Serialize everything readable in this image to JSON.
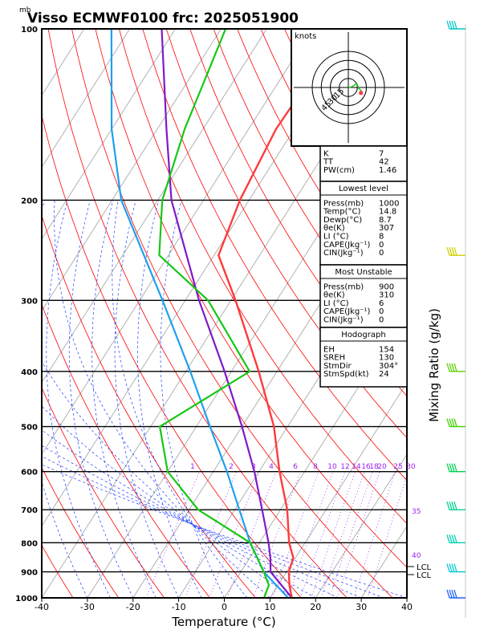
{
  "header": {
    "unit_mb": "mb",
    "title": "Visso ECMWF0100  frc: 2025051900"
  },
  "chart_data": {
    "type": "skew-t",
    "xlabel": "Temperature (°C)",
    "ylabel_right": "Mixing Ratio (g/kg)",
    "x_ticks": [
      -40,
      -30,
      -20,
      -10,
      0,
      10,
      20,
      30,
      40
    ],
    "pressure_ticks": [
      100,
      200,
      300,
      400,
      500,
      600,
      700,
      800,
      900,
      1000
    ],
    "xlim": [
      -40,
      40
    ],
    "plim": [
      1000,
      100
    ],
    "mixing_ratio_labels": [
      "1",
      "2",
      "3",
      "4",
      "6",
      "8",
      "10",
      "12",
      "14",
      "16",
      "18",
      "20",
      "25",
      "30"
    ],
    "theta_e_labels": [
      "35",
      "40"
    ],
    "lcl_labels": [
      "LCL",
      "LCL"
    ],
    "temperature_profile": [
      {
        "p": 1000,
        "t": 14.8
      },
      {
        "p": 950,
        "t": 12.5
      },
      {
        "p": 900,
        "t": 10.5
      },
      {
        "p": 850,
        "t": 9.5
      },
      {
        "p": 800,
        "t": 6.5
      },
      {
        "p": 700,
        "t": 1.5
      },
      {
        "p": 600,
        "t": -5.5
      },
      {
        "p": 500,
        "t": -13
      },
      {
        "p": 400,
        "t": -24
      },
      {
        "p": 300,
        "t": -39
      },
      {
        "p": 250,
        "t": -49
      },
      {
        "p": 200,
        "t": -52
      },
      {
        "p": 150,
        "t": -54
      },
      {
        "p": 100,
        "t": -53
      }
    ],
    "dewpoint_profile": [
      {
        "p": 1000,
        "t": 8.7
      },
      {
        "p": 950,
        "t": 8
      },
      {
        "p": 900,
        "t": 5
      },
      {
        "p": 800,
        "t": -2
      },
      {
        "p": 700,
        "t": -18
      },
      {
        "p": 600,
        "t": -30
      },
      {
        "p": 500,
        "t": -38
      },
      {
        "p": 400,
        "t": -26
      },
      {
        "p": 300,
        "t": -45
      },
      {
        "p": 250,
        "t": -62
      },
      {
        "p": 200,
        "t": -69
      },
      {
        "p": 150,
        "t": -74
      },
      {
        "p": 100,
        "t": -79
      }
    ],
    "parcel_profile": [
      {
        "p": 1000,
        "t": 14.8
      },
      {
        "p": 900,
        "t": 6.5
      },
      {
        "p": 850,
        "t": 4.5
      },
      {
        "p": 800,
        "t": 2
      },
      {
        "p": 700,
        "t": -4
      },
      {
        "p": 600,
        "t": -11
      },
      {
        "p": 500,
        "t": -20
      },
      {
        "p": 400,
        "t": -31.5
      },
      {
        "p": 300,
        "t": -47
      },
      {
        "p": 200,
        "t": -67
      },
      {
        "p": 150,
        "t": -78
      },
      {
        "p": 100,
        "t": -93
      }
    ],
    "moist_adiabat_profile": [
      {
        "p": 1000,
        "t": 14
      },
      {
        "p": 900,
        "t": 5
      },
      {
        "p": 800,
        "t": -2
      },
      {
        "p": 700,
        "t": -9
      },
      {
        "p": 600,
        "t": -17
      },
      {
        "p": 500,
        "t": -27
      },
      {
        "p": 400,
        "t": -39
      },
      {
        "p": 300,
        "t": -55
      },
      {
        "p": 200,
        "t": -78
      },
      {
        "p": 150,
        "t": -90
      },
      {
        "p": 100,
        "t": -104
      }
    ],
    "hodograph": {
      "unit": "knots",
      "ring_labels": [
        "15",
        "30",
        "45"
      ],
      "ring_kt": [
        15,
        30,
        45,
        60
      ],
      "trace": [
        [
          0,
          0
        ],
        [
          5,
          1
        ],
        [
          12,
          5
        ],
        [
          14,
          7
        ],
        [
          17,
          -1
        ],
        [
          22,
          -6
        ]
      ],
      "storm_motion": [
        21,
        -9
      ]
    },
    "indices": [
      {
        "label": "K",
        "value": "7"
      },
      {
        "label": "TT",
        "value": "42"
      },
      {
        "label": "PW(cm)",
        "value": "1.46"
      }
    ],
    "lowest_level": {
      "title": "Lowest level",
      "rows": [
        {
          "label": "Press(mb)",
          "value": "1000"
        },
        {
          "label": "Temp(°C)",
          "value": "14.8"
        },
        {
          "label": "Dewp(°C)",
          "value": "8.7"
        },
        {
          "label": "θe(K)",
          "value": "307"
        },
        {
          "label": "LI (°C)",
          "value": "8"
        },
        {
          "label": "CAPE(Jkg⁻¹)",
          "value": "0"
        },
        {
          "label": "CIN(Jkg⁻¹)",
          "value": "0"
        }
      ]
    },
    "most_unstable": {
      "title": "Most Unstable",
      "rows": [
        {
          "label": "Press(mb)",
          "value": "900"
        },
        {
          "label": "θe(K)",
          "value": "310"
        },
        {
          "label": "LI (°C)",
          "value": "6"
        },
        {
          "label": "CAPE(Jkg⁻¹)",
          "value": "0"
        },
        {
          "label": "CIN(Jkg⁻¹)",
          "value": "0"
        }
      ]
    },
    "hodograph_box": {
      "title": "Hodograph",
      "rows": [
        {
          "label": "EH",
          "value": "154"
        },
        {
          "label": "SREH",
          "value": "130"
        },
        {
          "label": "StmDir",
          "value": "304°"
        },
        {
          "label": "StmSpd(kt)",
          "value": "24"
        }
      ]
    },
    "wind_barbs": [
      {
        "p": 100,
        "color": "#00c8c8"
      },
      {
        "p": 250,
        "color": "#d0d000"
      },
      {
        "p": 400,
        "color": "#60d000"
      },
      {
        "p": 500,
        "color": "#40d000"
      },
      {
        "p": 600,
        "color": "#00d050"
      },
      {
        "p": 700,
        "color": "#00d090"
      },
      {
        "p": 800,
        "color": "#00d0b0"
      },
      {
        "p": 900,
        "color": "#00c8d0"
      },
      {
        "p": 1000,
        "color": "#2060ff"
      }
    ],
    "colors": {
      "temperature": "#ff3b3b",
      "dewpoint": "#16c816",
      "parcel": "#7f19c8",
      "moist_adiabat": "#1ea0f0",
      "dry_adiabat": "#ff0000",
      "isotherm": "#a0a0a0",
      "moist_guides": "#1a3cff",
      "mixing_ratio": "#a020f0"
    }
  }
}
